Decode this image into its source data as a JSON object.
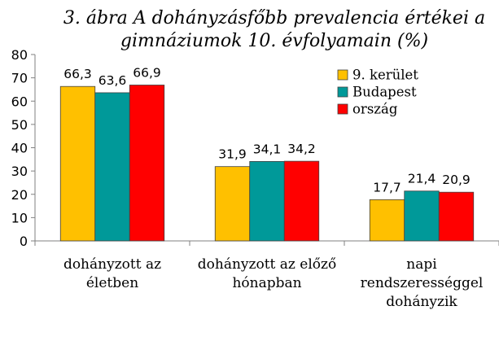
{
  "chart_data": {
    "type": "bar",
    "title_lines": [
      "3. ábra A dohányzásfőbb prevalencia értékei a",
      "gimnáziumok 10. évfolyamain (%)"
    ],
    "categories": [
      [
        "dohányzott az",
        "életben"
      ],
      [
        "dohányzott az előző",
        "hónapban"
      ],
      [
        "napi",
        "rendszerességgel",
        "dohányzik"
      ]
    ],
    "series": [
      {
        "name": "9. kerület",
        "color": "#FFC000",
        "values": [
          66.3,
          31.9,
          17.7
        ],
        "labels": [
          "66,3",
          "31,9",
          "17,7"
        ]
      },
      {
        "name": "Budapest",
        "color": "#009999",
        "values": [
          63.6,
          34.1,
          21.4
        ],
        "labels": [
          "63,6",
          "34,1",
          "21,4"
        ]
      },
      {
        "name": "ország",
        "color": "#FF0000",
        "values": [
          66.9,
          34.2,
          20.9
        ],
        "labels": [
          "66,9",
          "34,2",
          "20,9"
        ]
      }
    ],
    "ylim": [
      0,
      80
    ],
    "yticks": [
      0,
      10,
      20,
      30,
      40,
      50,
      60,
      70,
      80
    ],
    "grid": false,
    "legend_position": "top-right"
  }
}
